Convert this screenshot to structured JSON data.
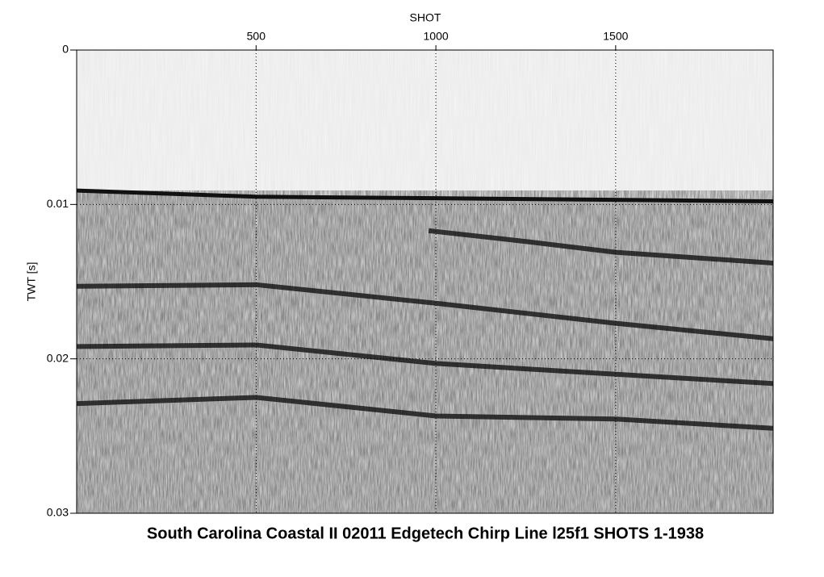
{
  "chart_data": {
    "type": "seismic",
    "title": "South Carolina Coastal II 02011 Edgetech Chirp Line l25f1 SHOTS 1-1938",
    "x_label": "SHOT",
    "y_label": "TWT [s]",
    "xlim": [
      1,
      1938
    ],
    "xticks": [
      500,
      1000,
      1500
    ],
    "ylim": [
      0,
      0.03
    ],
    "yticks": [
      0,
      0.01,
      0.02,
      0.03
    ],
    "y_inverted": true,
    "grid": true,
    "color": "#111111",
    "series": [
      {
        "x": [
          1,
          500,
          1000,
          1500,
          1938
        ],
        "values": [
          0.0091,
          0.0095,
          0.0096,
          0.0097,
          0.0098
        ]
      },
      {
        "x": [
          980,
          1250,
          1500,
          1938
        ],
        "values": [
          0.0117,
          0.0124,
          0.0131,
          0.0138
        ]
      },
      {
        "x": [
          1,
          500,
          1000,
          1500,
          1938
        ],
        "values": [
          0.0153,
          0.0152,
          0.0164,
          0.0177,
          0.0187
        ]
      },
      {
        "x": [
          1,
          500,
          1000,
          1500,
          1938
        ],
        "values": [
          0.0192,
          0.0191,
          0.0203,
          0.021,
          0.0216
        ]
      },
      {
        "x": [
          1,
          500,
          1000,
          1500,
          1938
        ],
        "values": [
          0.0229,
          0.0225,
          0.0237,
          0.0239,
          0.0245
        ]
      }
    ]
  }
}
